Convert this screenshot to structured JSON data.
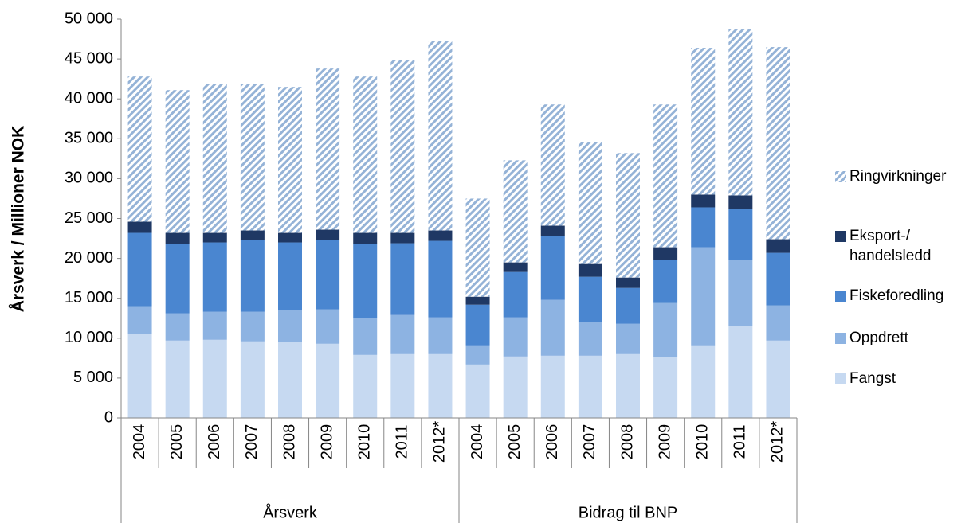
{
  "chart_data": {
    "type": "stacked_bar",
    "y_label": "Årsverk / Millioner NOK",
    "categories": [
      "2004",
      "2005",
      "2006",
      "2007",
      "2008",
      "2009",
      "2010",
      "2011",
      "2012*",
      "2004",
      "2005",
      "2006",
      "2007",
      "2008",
      "2009",
      "2010",
      "2011",
      "2012*"
    ],
    "category_groups": [
      "Årsverk",
      "Bidrag til BNP"
    ],
    "series": [
      {
        "name": "Fangst",
        "color": "#c6d9f1",
        "values": [
          10500,
          9700,
          9800,
          9600,
          9500,
          9300,
          7900,
          8000,
          8000,
          6700,
          7700,
          7800,
          7800,
          8000,
          7600,
          9000,
          11500,
          9700
        ]
      },
      {
        "name": "Oppdrett",
        "color": "#8db3e2",
        "values": [
          3400,
          3400,
          3500,
          3700,
          4000,
          4300,
          4600,
          4900,
          4600,
          2300,
          4900,
          7000,
          4200,
          3800,
          6800,
          12400,
          8300,
          4400
        ]
      },
      {
        "name": "Fiskeforedling",
        "color": "#4a86d0",
        "values": [
          9300,
          8700,
          8700,
          9000,
          8500,
          8700,
          9300,
          9000,
          9600,
          5200,
          5700,
          8000,
          5700,
          4500,
          5400,
          5000,
          6400,
          6600
        ]
      },
      {
        "name": "Eksport-/handelsledd",
        "color": "#1f3864",
        "values": [
          1400,
          1400,
          1200,
          1200,
          1200,
          1300,
          1400,
          1300,
          1300,
          1000,
          1200,
          1300,
          1600,
          1300,
          1600,
          1600,
          1700,
          1700
        ]
      },
      {
        "name": "Ringvirkninger",
        "color": "#95b3d7",
        "hatch": true,
        "values": [
          18200,
          17900,
          18700,
          18400,
          18300,
          20200,
          19600,
          21700,
          23800,
          12300,
          12800,
          15200,
          15300,
          15600,
          17900,
          18400,
          20800,
          24100
        ]
      }
    ],
    "ylim": [
      0,
      50000
    ],
    "yticks": [
      0,
      {
        "value": 5000,
        "label": "5 000"
      },
      {
        "value": 10000,
        "label": "10 000"
      },
      {
        "value": 15000,
        "label": "15 000"
      },
      {
        "value": 20000,
        "label": "20 000"
      },
      {
        "value": 25000,
        "label": "25 000"
      },
      {
        "value": 30000,
        "label": "30 000"
      },
      {
        "value": 35000,
        "label": "35 000"
      },
      {
        "value": 40000,
        "label": "40 000"
      },
      {
        "value": 45000,
        "label": "45 000"
      },
      {
        "value": 50000,
        "label": "50 000"
      }
    ],
    "legend": "right"
  }
}
